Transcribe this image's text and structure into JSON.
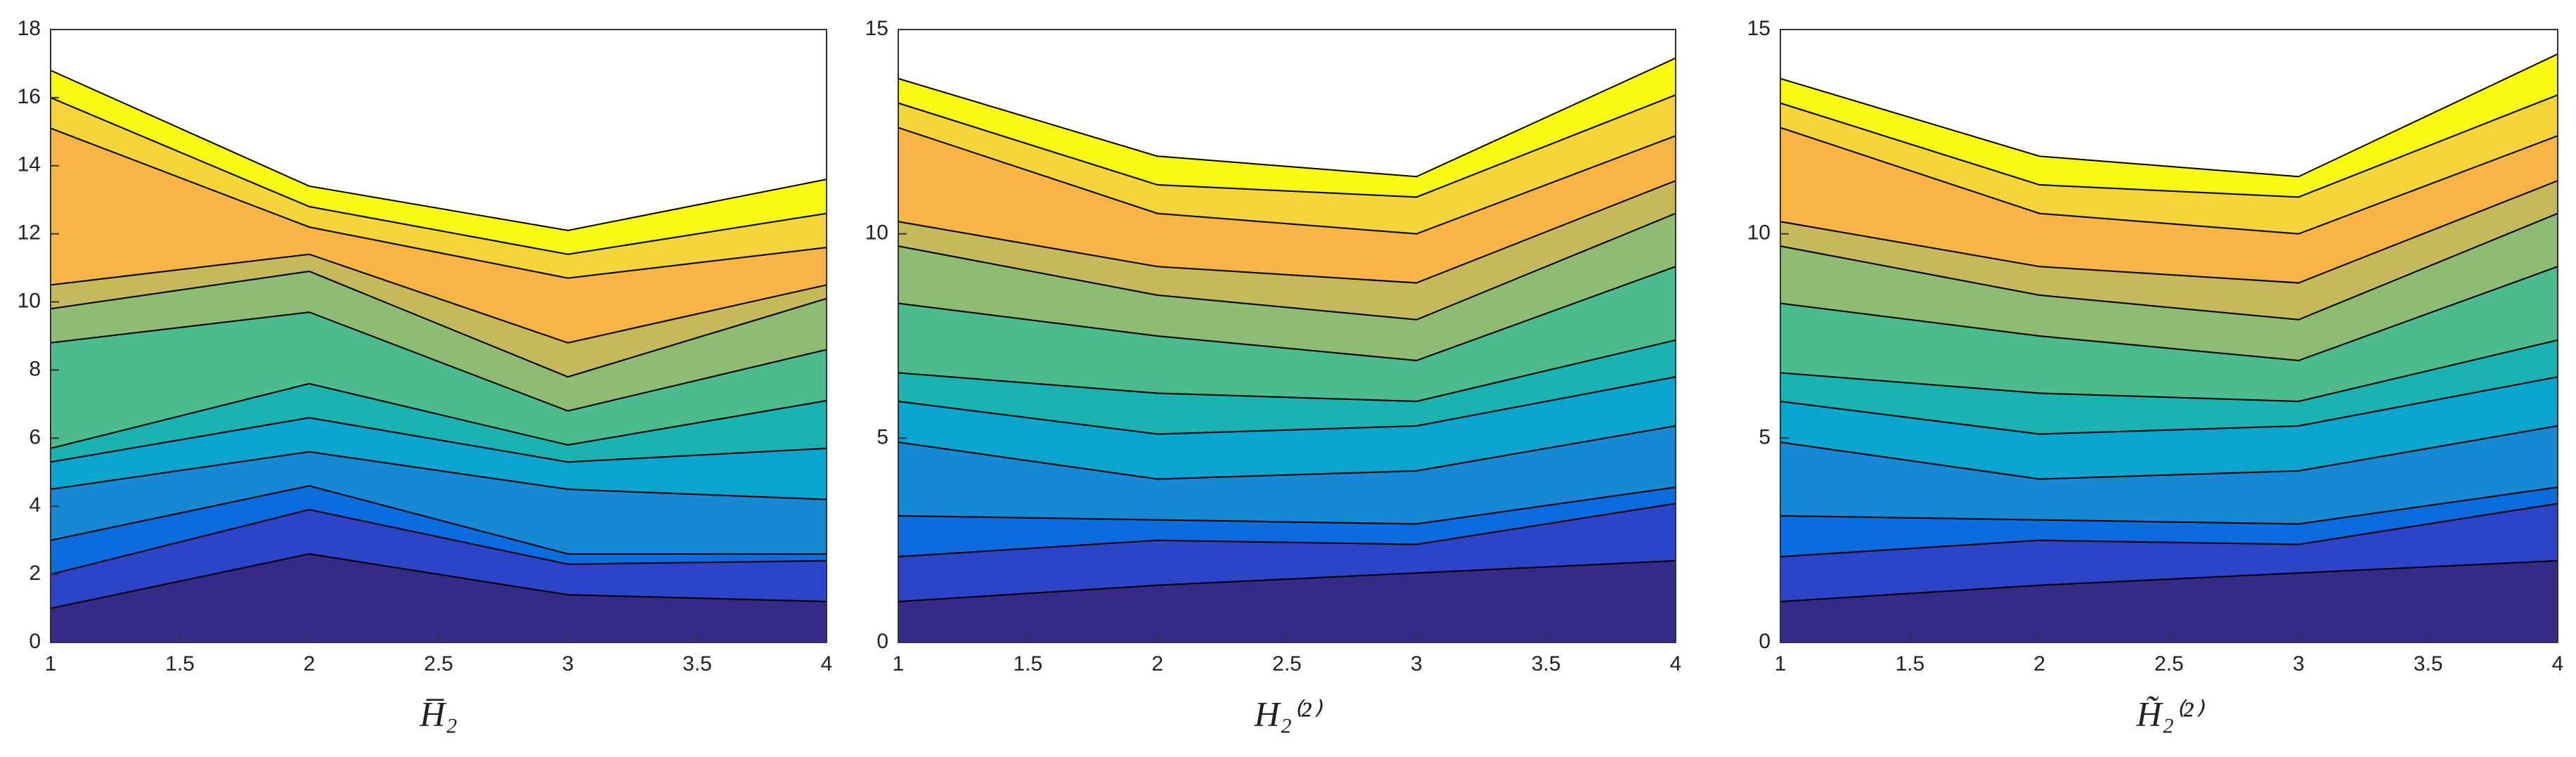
{
  "chart_data": [
    {
      "type": "stacked-area",
      "xlabel": "H̅₂",
      "x": [
        1,
        2,
        3,
        4
      ],
      "xlim": [
        1,
        4
      ],
      "xticks": [
        1,
        1.5,
        2,
        2.5,
        3,
        3.5,
        4
      ],
      "ylim": [
        0,
        18
      ],
      "yticks": [
        0,
        2,
        4,
        6,
        8,
        10,
        12,
        14,
        16,
        18
      ],
      "series": [
        {
          "color": "#352a87",
          "values": [
            1.0,
            2.6,
            1.4,
            1.2
          ]
        },
        {
          "color": "#2c44c7",
          "values": [
            1.0,
            1.3,
            0.9,
            1.2
          ]
        },
        {
          "color": "#0b6ce0",
          "values": [
            1.0,
            0.7,
            0.3,
            0.2
          ]
        },
        {
          "color": "#1789d4",
          "values": [
            1.5,
            1.0,
            1.9,
            1.6
          ]
        },
        {
          "color": "#0aa5ce",
          "values": [
            0.8,
            1.0,
            0.8,
            1.5
          ]
        },
        {
          "color": "#1bb3b1",
          "values": [
            0.4,
            1.0,
            0.5,
            1.4
          ]
        },
        {
          "color": "#4cbc8f",
          "values": [
            3.1,
            2.1,
            1.0,
            1.5
          ]
        },
        {
          "color": "#8fbc72",
          "values": [
            1.0,
            1.2,
            1.0,
            1.5
          ]
        },
        {
          "color": "#c6b95c",
          "values": [
            0.7,
            0.5,
            1.0,
            0.4
          ]
        },
        {
          "color": "#f8b545",
          "values": [
            4.6,
            0.8,
            1.9,
            1.1
          ]
        },
        {
          "color": "#f5d43a",
          "values": [
            0.9,
            0.6,
            0.7,
            1.0
          ]
        },
        {
          "color": "#f9fa14",
          "values": [
            0.8,
            0.6,
            0.7,
            1.0
          ]
        }
      ]
    },
    {
      "type": "stacked-area",
      "xlabel": "H₂⁽²⁾",
      "x": [
        1,
        2,
        3,
        4
      ],
      "xlim": [
        1,
        4
      ],
      "xticks": [
        1,
        1.5,
        2,
        2.5,
        3,
        3.5,
        4
      ],
      "ylim": [
        0,
        15
      ],
      "yticks": [
        0,
        5,
        10,
        15
      ],
      "series": [
        {
          "color": "#352a87",
          "values": [
            1.0,
            1.4,
            1.7,
            2.0
          ]
        },
        {
          "color": "#2c44c7",
          "values": [
            1.1,
            1.1,
            0.7,
            1.4
          ]
        },
        {
          "color": "#0b6ce0",
          "values": [
            1.0,
            0.5,
            0.5,
            0.4
          ]
        },
        {
          "color": "#1789d4",
          "values": [
            1.8,
            1.0,
            1.3,
            1.5
          ]
        },
        {
          "color": "#0aa5ce",
          "values": [
            1.0,
            1.1,
            1.1,
            1.2
          ]
        },
        {
          "color": "#1bb3b1",
          "values": [
            0.7,
            1.0,
            0.6,
            0.9
          ]
        },
        {
          "color": "#4cbc8f",
          "values": [
            1.7,
            1.4,
            1.0,
            1.8
          ]
        },
        {
          "color": "#8fbc72",
          "values": [
            1.4,
            1.0,
            1.0,
            1.3
          ]
        },
        {
          "color": "#c6b95c",
          "values": [
            0.6,
            0.7,
            0.9,
            0.8
          ]
        },
        {
          "color": "#f8b545",
          "values": [
            2.3,
            1.3,
            1.2,
            1.1
          ]
        },
        {
          "color": "#f5d43a",
          "values": [
            0.6,
            0.7,
            0.9,
            1.0
          ]
        },
        {
          "color": "#f9fa14",
          "values": [
            0.6,
            0.7,
            0.5,
            0.9
          ]
        }
      ]
    },
    {
      "type": "stacked-area",
      "xlabel": "H̃₂⁽²⁾",
      "x": [
        1,
        2,
        3,
        4
      ],
      "xlim": [
        1,
        4
      ],
      "xticks": [
        1,
        1.5,
        2,
        2.5,
        3,
        3.5,
        4
      ],
      "ylim": [
        0,
        15
      ],
      "yticks": [
        0,
        5,
        10,
        15
      ],
      "series": [
        {
          "color": "#352a87",
          "values": [
            1.0,
            1.4,
            1.7,
            2.0
          ]
        },
        {
          "color": "#2c44c7",
          "values": [
            1.1,
            1.1,
            0.7,
            1.4
          ]
        },
        {
          "color": "#0b6ce0",
          "values": [
            1.0,
            0.5,
            0.5,
            0.4
          ]
        },
        {
          "color": "#1789d4",
          "values": [
            1.8,
            1.0,
            1.3,
            1.5
          ]
        },
        {
          "color": "#0aa5ce",
          "values": [
            1.0,
            1.1,
            1.1,
            1.2
          ]
        },
        {
          "color": "#1bb3b1",
          "values": [
            0.7,
            1.0,
            0.6,
            0.9
          ]
        },
        {
          "color": "#4cbc8f",
          "values": [
            1.7,
            1.4,
            1.0,
            1.8
          ]
        },
        {
          "color": "#8fbc72",
          "values": [
            1.4,
            1.0,
            1.0,
            1.3
          ]
        },
        {
          "color": "#c6b95c",
          "values": [
            0.6,
            0.7,
            0.9,
            0.8
          ]
        },
        {
          "color": "#f8b545",
          "values": [
            2.3,
            1.3,
            1.2,
            1.1
          ]
        },
        {
          "color": "#f5d43a",
          "values": [
            0.6,
            0.7,
            0.9,
            1.0
          ]
        },
        {
          "color": "#f9fa14",
          "values": [
            0.6,
            0.7,
            0.5,
            1.0
          ]
        }
      ]
    }
  ]
}
